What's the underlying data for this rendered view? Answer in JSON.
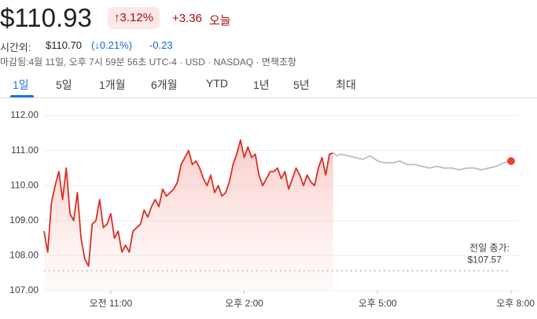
{
  "quote": {
    "price": "$110.93",
    "change_pct": "↑3.12%",
    "change": "+3.36",
    "change_period": "오늘"
  },
  "after_hours": {
    "label": "시간외:",
    "price": "$110.70",
    "change_pct": "(↓0.21%)",
    "change": "-0.23"
  },
  "status": "마감됨:4월 11일, 오후 7시 59분 56초 UTC-4 · USD · NASDAQ · 면책조항",
  "tabs": [
    "1일",
    "5일",
    "1개월",
    "6개월",
    "YTD",
    "1년",
    "5년",
    "최대"
  ],
  "chart_data": {
    "type": "line",
    "xlim": [
      570,
      1200
    ],
    "xticks": [
      {
        "value": 660,
        "label": "오전 11:00"
      },
      {
        "value": 840,
        "label": "오후 2:00"
      },
      {
        "value": 1020,
        "label": "오후 5:00"
      },
      {
        "value": 1200,
        "label": "오후 8:00"
      }
    ],
    "ylim": [
      107,
      112
    ],
    "yticks": [
      {
        "value": 107,
        "label": "107.00"
      },
      {
        "value": 108,
        "label": "108.00"
      },
      {
        "value": 109,
        "label": "109.00"
      },
      {
        "value": 110,
        "label": "110.00"
      },
      {
        "value": 111,
        "label": "111.00"
      },
      {
        "value": 112,
        "label": "112.00"
      }
    ],
    "grid": true,
    "series": [
      {
        "color": "#d93025",
        "area": true,
        "x": [
          570,
          575,
          580,
          585,
          590,
          595,
          600,
          605,
          610,
          615,
          620,
          625,
          630,
          635,
          640,
          645,
          650,
          655,
          660,
          665,
          670,
          675,
          680,
          685,
          690,
          695,
          700,
          705,
          710,
          715,
          720,
          725,
          730,
          735,
          740,
          745,
          750,
          755,
          760,
          765,
          770,
          775,
          780,
          785,
          790,
          795,
          800,
          805,
          810,
          815,
          820,
          825,
          830,
          835,
          840,
          845,
          850,
          855,
          860,
          865,
          870,
          875,
          880,
          885,
          890,
          895,
          900,
          905,
          910,
          915,
          920,
          925,
          930,
          935,
          940,
          945,
          950,
          955,
          960
        ],
        "values": [
          108.7,
          108.1,
          109.5,
          110.0,
          110.4,
          109.6,
          110.5,
          109.2,
          109.0,
          109.8,
          108.5,
          107.9,
          107.7,
          108.9,
          109.0,
          109.6,
          108.8,
          108.9,
          109.2,
          108.5,
          108.7,
          108.1,
          108.3,
          108.1,
          108.7,
          108.8,
          108.9,
          109.3,
          109.1,
          109.4,
          109.6,
          109.4,
          109.9,
          109.7,
          109.8,
          109.9,
          110.1,
          110.6,
          110.8,
          111.0,
          110.6,
          110.7,
          110.5,
          110.2,
          110.0,
          110.3,
          109.8,
          110.0,
          109.7,
          109.8,
          110.1,
          110.6,
          110.9,
          111.3,
          110.8,
          111.1,
          110.8,
          110.9,
          110.3,
          110.0,
          110.2,
          110.4,
          110.4,
          110.5,
          110.2,
          110.4,
          109.9,
          110.2,
          110.5,
          110.3,
          110.0,
          110.3,
          110.1,
          110.0,
          110.5,
          110.8,
          110.3,
          110.9,
          110.93
        ]
      },
      {
        "color": "#bdbdbd",
        "area": false,
        "end_dot": true,
        "x": [
          960,
          965,
          970,
          980,
          990,
          1000,
          1010,
          1020,
          1030,
          1040,
          1050,
          1060,
          1070,
          1080,
          1090,
          1100,
          1110,
          1120,
          1130,
          1140,
          1150,
          1160,
          1170,
          1180,
          1190,
          1200
        ],
        "values": [
          110.93,
          110.85,
          110.9,
          110.85,
          110.8,
          110.75,
          110.85,
          110.7,
          110.65,
          110.65,
          110.7,
          110.6,
          110.6,
          110.55,
          110.5,
          110.55,
          110.5,
          110.5,
          110.45,
          110.5,
          110.5,
          110.45,
          110.5,
          110.55,
          110.65,
          110.7
        ]
      }
    ],
    "reference": {
      "label": "전일 종가:",
      "value": 107.57,
      "value_label": "$107.57"
    }
  }
}
